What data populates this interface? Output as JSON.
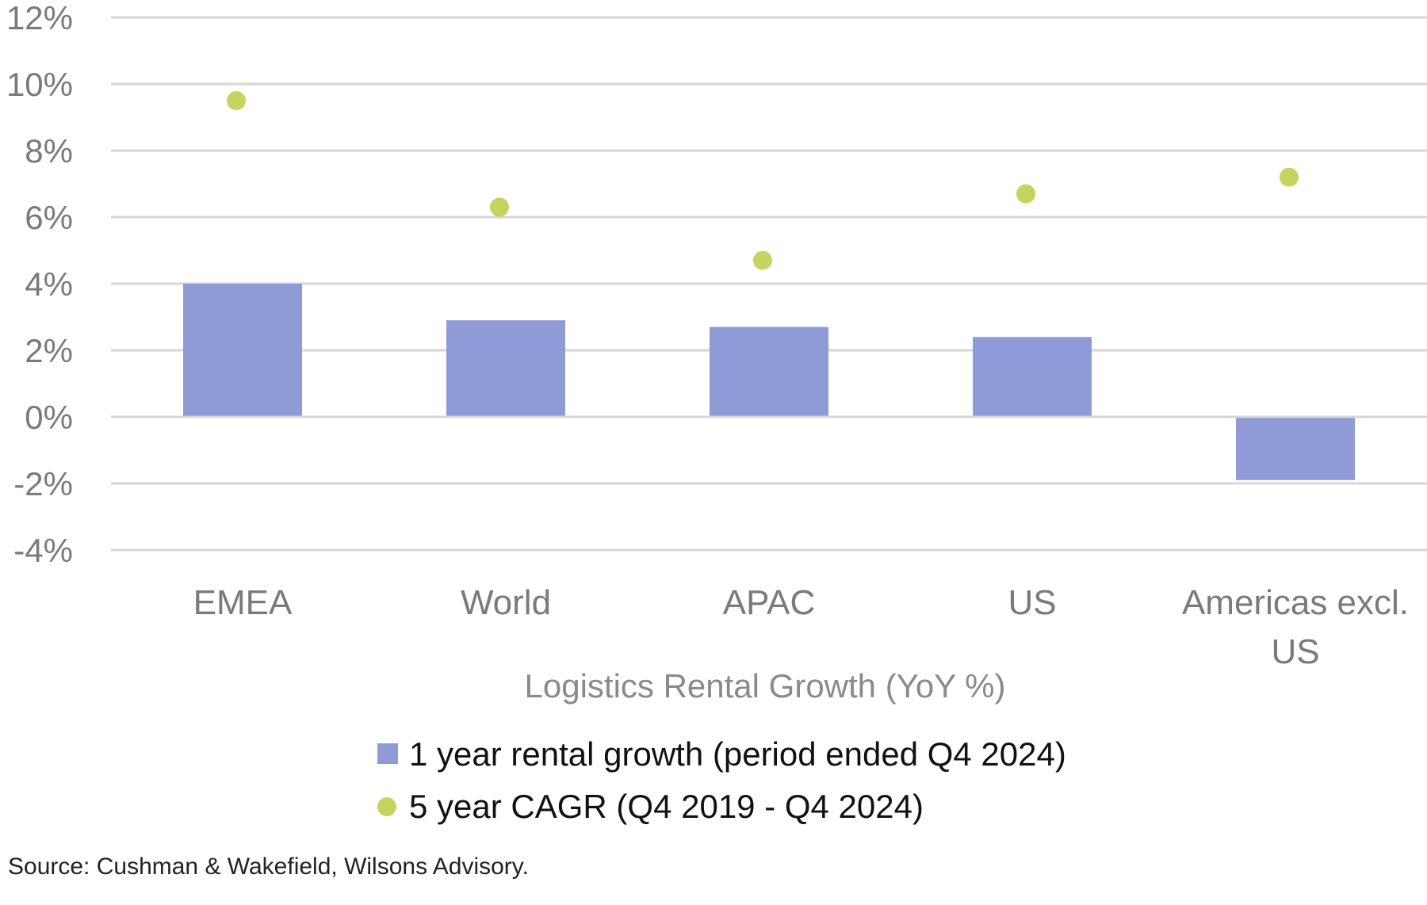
{
  "chart_data": {
    "type": "bar",
    "categories": [
      "EMEA",
      "World",
      "APAC",
      "US",
      "Americas excl. US"
    ],
    "category_lines": [
      [
        "EMEA"
      ],
      [
        "World"
      ],
      [
        "APAC"
      ],
      [
        "US"
      ],
      [
        "Americas excl.",
        "US"
      ]
    ],
    "series": [
      {
        "name": "1 year rental growth (period ended Q4 2024)",
        "kind": "bar",
        "color": "#8f9bd6",
        "values": [
          4.0,
          2.9,
          2.7,
          2.4,
          -1.9
        ]
      },
      {
        "name": "5 year CAGR (Q4 2019 - Q4 2024)",
        "kind": "scatter",
        "color": "#c5d35f",
        "values": [
          9.5,
          6.3,
          4.7,
          6.7,
          7.2
        ]
      }
    ],
    "xlabel": "Logistics Rental Growth (YoY %)",
    "ylabel": "",
    "ylim": [
      -4,
      12
    ],
    "yticks": [
      12,
      10,
      8,
      6,
      4,
      2,
      0,
      -2,
      -4
    ],
    "ytick_labels": [
      "12%",
      "10%",
      "8%",
      "6%",
      "4%",
      "2%",
      "0%",
      "-2%",
      "-4%"
    ],
    "grid": true,
    "legend_position": "bottom"
  },
  "source": "Source: Cushman & Wakefield, Wilsons Advisory."
}
